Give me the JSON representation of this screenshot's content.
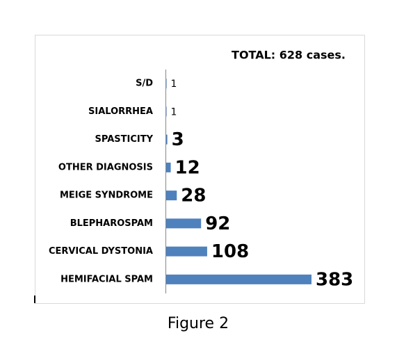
{
  "chart_data": {
    "type": "bar",
    "orientation": "horizontal",
    "annotation": "TOTAL: 628 cases.",
    "caption": "Figure 2",
    "categories": [
      "S/D",
      "SIALORRHEA",
      "SPASTICITY",
      "OTHER DIAGNOSIS",
      "MEIGE SYNDROME",
      "BLEPHAROSPAM",
      "CERVICAL DYSTONIA",
      "HEMIFACIAL SPAM"
    ],
    "values": [
      1,
      1,
      3,
      12,
      28,
      92,
      108,
      383
    ],
    "color": "#4f81bd"
  }
}
